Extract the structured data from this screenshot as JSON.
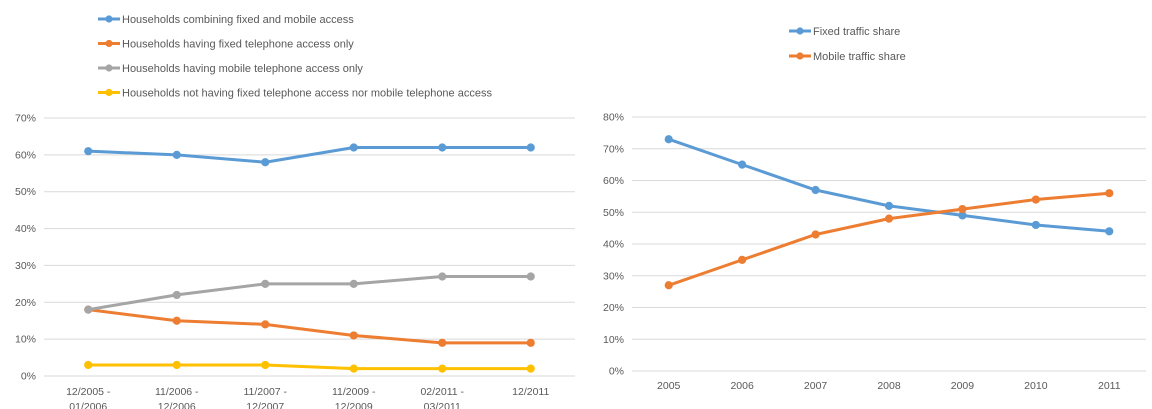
{
  "chart_data": [
    {
      "type": "line",
      "categories": [
        "12/2005 - 01/2006",
        "11/2006 - 12/2006",
        "11/2007 - 12/2007",
        "11/2009 - 12/2009",
        "02/2011 - 03/2011",
        "12/2011"
      ],
      "series": [
        {
          "name": "Households combining fixed and mobile access",
          "color": "#5B9BD5",
          "values": [
            61,
            60,
            58,
            62,
            62,
            62
          ]
        },
        {
          "name": "Households having fixed telephone access only",
          "color": "#ED7D31",
          "values": [
            18,
            15,
            14,
            11,
            9,
            9
          ]
        },
        {
          "name": "Households having mobile telephone access only",
          "color": "#A5A5A5",
          "values": [
            18,
            22,
            25,
            25,
            27,
            27
          ]
        },
        {
          "name": "Households not having fixed telephone access nor mobile telephone access",
          "color": "#FFC000",
          "values": [
            3,
            3,
            3,
            2,
            2,
            2
          ]
        }
      ],
      "ylim": [
        0,
        70
      ],
      "yticks": [
        "0%",
        "10%",
        "20%",
        "30%",
        "40%",
        "50%",
        "60%",
        "70%"
      ],
      "grid": true,
      "legend": "top"
    },
    {
      "type": "line",
      "categories": [
        "2005",
        "2006",
        "2007",
        "2008",
        "2009",
        "2010",
        "2011"
      ],
      "series": [
        {
          "name": "Fixed traffic share",
          "color": "#5B9BD5",
          "values": [
            73,
            65,
            57,
            52,
            49,
            46,
            44
          ]
        },
        {
          "name": "Mobile traffic share",
          "color": "#ED7D31",
          "values": [
            27,
            35,
            43,
            48,
            51,
            54,
            56
          ]
        }
      ],
      "ylim": [
        0,
        80
      ],
      "yticks": [
        "0%",
        "10%",
        "20%",
        "30%",
        "40%",
        "50%",
        "60%",
        "70%",
        "80%"
      ],
      "grid": true,
      "legend": "top"
    }
  ]
}
